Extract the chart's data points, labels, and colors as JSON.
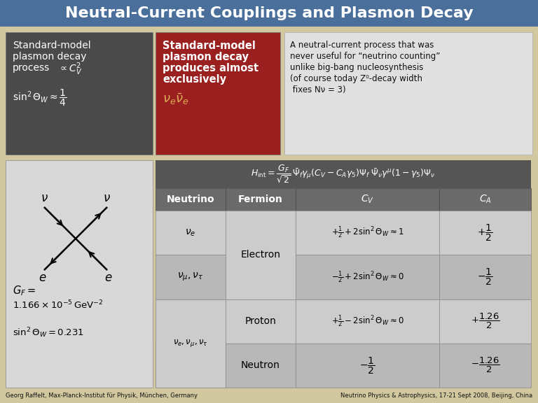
{
  "title": "Neutral-Current Couplings and Plasmon Decay",
  "title_bg": "#4a6f9a",
  "title_color": "#ffffff",
  "bg_color": "#d2c8a0",
  "box1_bg": "#4a4a4a",
  "box1_color": "#ffffff",
  "box2_bg": "#9a2020",
  "box2_color": "#ffffff",
  "box3_bg": "#e0e0e0",
  "box3_color": "#111111",
  "table_header_bg": "#555555",
  "table_col_header_bg": "#6a6a6a",
  "table_col_header_color": "#ffffff",
  "table_light_bg": "#cccccc",
  "table_dark_bg": "#b8b8b8",
  "diagram_bg": "#d8d8d8",
  "footer_color": "#111111",
  "footer_left": "Georg Raffelt, Max-Planck-Institut für Physik, München, Germany",
  "footer_right": "Neutrino Physics & Astrophysics, 17-21 Sept 2008, Beijing, China",
  "nu_bar_color": "#ddaa55"
}
